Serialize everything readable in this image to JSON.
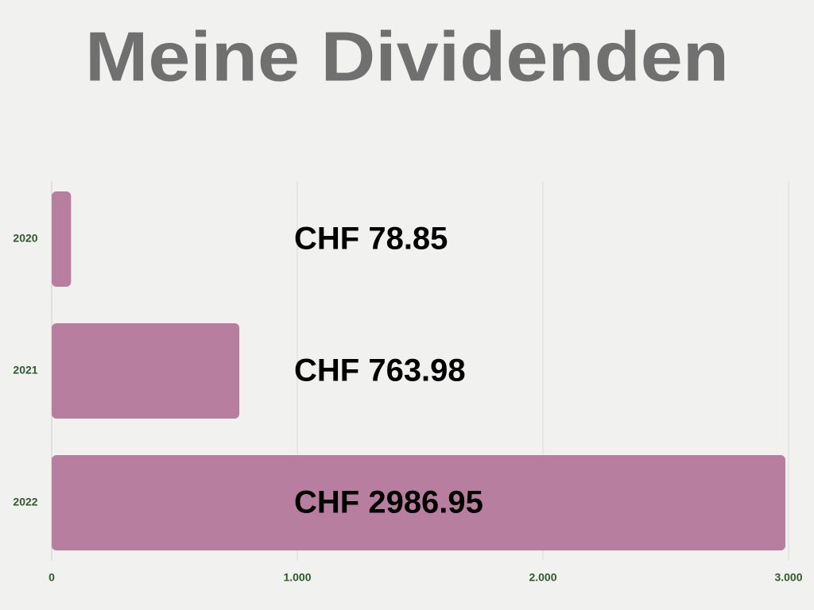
{
  "chart_data": {
    "type": "bar",
    "orientation": "horizontal",
    "title": "Meine Dividenden",
    "categories": [
      "2020",
      "2021",
      "2022"
    ],
    "values": [
      78.85,
      763.98,
      2986.95
    ],
    "value_labels": [
      "CHF 78.85",
      "CHF 763.98",
      "CHF 2986.95"
    ],
    "color": "#b87ea0",
    "xlim": [
      0,
      3000
    ],
    "xticks": [
      0,
      {
        "value": 1000,
        "label": "1.000"
      },
      {
        "value": 2000,
        "label": "2.000"
      },
      {
        "value": 3000,
        "label": "3.000"
      }
    ],
    "grid": true
  }
}
